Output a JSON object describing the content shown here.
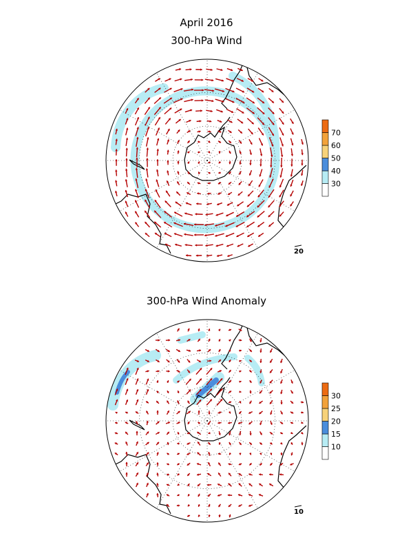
{
  "title": "April 2016",
  "chart_data": [
    {
      "type": "vector-map",
      "projection": "south polar stereographic",
      "title": "300-hPa Wind",
      "reference_vector": "20",
      "colorbar": {
        "ticks": [
          "30",
          "40",
          "50",
          "60",
          "70"
        ],
        "colors": [
          "#ffffff",
          "#b7ecf4",
          "#4a8ddc",
          "#f7d27a",
          "#f2a23a",
          "#ec6b12"
        ]
      },
      "jet_core_band": "30-40",
      "arrow_color": "#b40000"
    },
    {
      "type": "vector-map",
      "projection": "south polar stereographic",
      "title": "300-hPa Wind Anomaly",
      "reference_vector": "10",
      "colorbar": {
        "ticks": [
          "10",
          "15",
          "20",
          "25",
          "30"
        ],
        "colors": [
          "#ffffff",
          "#b7ecf4",
          "#4a8ddc",
          "#f7d27a",
          "#f2a23a",
          "#ec6b12"
        ]
      },
      "max_band": "15-20",
      "arrow_color": "#b40000"
    }
  ]
}
